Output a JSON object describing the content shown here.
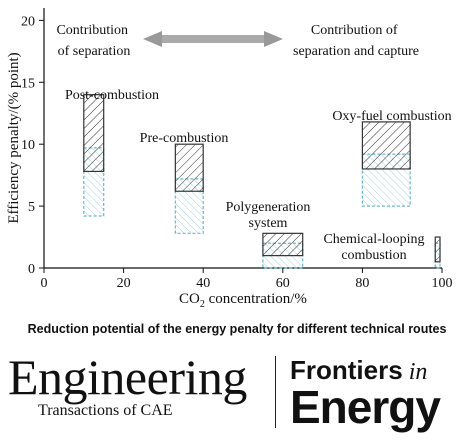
{
  "chart_data": {
    "type": "floating-bar",
    "xlabel_prefix": "CO",
    "xlabel_sub": "2",
    "xlabel_suffix": " concentration/%",
    "ylabel": "Efficiency penalty/(% point)",
    "xlim": [
      0,
      100
    ],
    "ylim": [
      0,
      21
    ],
    "xticks": [
      0,
      20,
      40,
      60,
      80,
      100
    ],
    "yticks": [
      0,
      5,
      10,
      15,
      20
    ],
    "grid": false,
    "colors": {
      "capture": "#333333",
      "separation": "#6ab7c8",
      "arrow": "#999999"
    },
    "arrow_left_label": [
      "Contribution",
      "of separation"
    ],
    "arrow_right_label": [
      "Contribution of",
      "separation and capture"
    ],
    "groups": [
      {
        "label": [
          "Post-combustion"
        ],
        "x_min": 10,
        "x_max": 15,
        "capture_range": [
          7.8,
          14.0
        ],
        "separation_range": [
          4.2,
          9.7
        ]
      },
      {
        "label": [
          "Pre-combustion"
        ],
        "x_min": 33,
        "x_max": 40,
        "capture_range": [
          6.2,
          10.0
        ],
        "separation_range": [
          2.8,
          7.2
        ]
      },
      {
        "label": [
          "Polygeneration",
          "system"
        ],
        "x_min": 55,
        "x_max": 65,
        "capture_range": [
          1.0,
          2.8
        ],
        "separation_range": [
          0.0,
          2.0
        ]
      },
      {
        "label": [
          "Oxy-fuel combustion"
        ],
        "x_min": 80,
        "x_max": 92,
        "capture_range": [
          8.0,
          11.8
        ],
        "separation_range": [
          5.0,
          9.2
        ]
      },
      {
        "label": [
          "Chemical-looping",
          "combustion"
        ],
        "x_min": 98.3,
        "x_max": 99.5,
        "capture_range": [
          0.5,
          2.5
        ],
        "separation_range": [
          0.0,
          2.0
        ]
      }
    ]
  },
  "caption": "Reduction potential of the energy penalty for different technical routes",
  "logos": {
    "engineering_word": "Engineering",
    "engineering_sub": "Transactions of CAE",
    "frontiers_line1": "Frontiers",
    "frontiers_in": "in",
    "frontiers_line2": "Energy"
  }
}
